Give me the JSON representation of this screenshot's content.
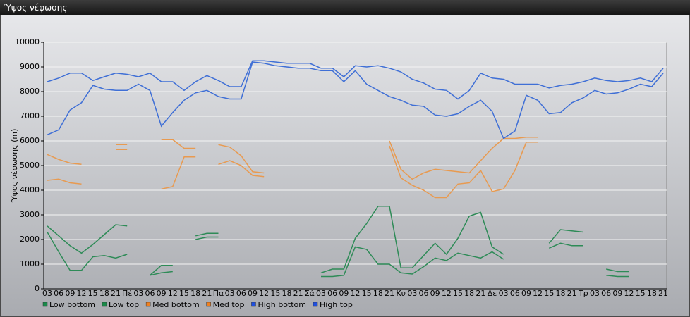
{
  "window_title": "Ύψος νέφωσης",
  "chart_data": {
    "type": "line",
    "ylabel": "Ύψος νέφωσης (m)",
    "categories": [
      "03",
      "06",
      "09",
      "12",
      "15",
      "18",
      "21",
      "Πέ",
      "03",
      "06",
      "09",
      "12",
      "15",
      "18",
      "21",
      "Πα",
      "03",
      "06",
      "09",
      "12",
      "15",
      "18",
      "21",
      "Σά",
      "03",
      "06",
      "09",
      "12",
      "15",
      "18",
      "21",
      "Κυ",
      "03",
      "06",
      "09",
      "12",
      "15",
      "18",
      "21",
      "Δε",
      "03",
      "06",
      "09",
      "12",
      "15",
      "18",
      "21",
      "Τρ",
      "03",
      "06",
      "09",
      "12",
      "15",
      "18",
      "21"
    ],
    "ylim": [
      0,
      10000
    ],
    "yticks": [
      0,
      1000,
      2000,
      3000,
      4000,
      5000,
      6000,
      7000,
      8000,
      9000,
      10000
    ],
    "grid": true,
    "legend": "bottom",
    "series": [
      {
        "name": "Low bottom",
        "color": "#2e8b57",
        "legend_color": "#1a8a4a",
        "values": [
          2300,
          1500,
          750,
          750,
          1300,
          1350,
          1250,
          1400,
          null,
          550,
          650,
          700,
          null,
          2000,
          2100,
          2100,
          null,
          null,
          null,
          null,
          null,
          null,
          null,
          null,
          500,
          500,
          550,
          1700,
          1600,
          1000,
          1000,
          650,
          600,
          900,
          1250,
          1150,
          1450,
          1350,
          1250,
          1500,
          1200,
          null,
          null,
          null,
          1650,
          1850,
          1750,
          1750,
          null,
          550,
          500,
          500,
          null,
          null,
          null
        ]
      },
      {
        "name": "Low top",
        "color": "#2e8b57",
        "legend_color": "#1a8a4a",
        "values": [
          2550,
          2150,
          1750,
          1450,
          1800,
          2200,
          2600,
          2550,
          null,
          550,
          950,
          950,
          null,
          2150,
          2250,
          2250,
          null,
          null,
          null,
          null,
          null,
          null,
          null,
          null,
          650,
          800,
          800,
          2050,
          2650,
          3350,
          3350,
          850,
          850,
          1350,
          1850,
          1400,
          2050,
          2950,
          3100,
          1700,
          1400,
          null,
          null,
          null,
          1850,
          2400,
          2350,
          2300,
          null,
          800,
          700,
          700,
          null,
          null,
          null
        ]
      },
      {
        "name": "Med bottom",
        "color": "#e89a50",
        "legend_color": "#f08020",
        "values": [
          4400,
          4450,
          4300,
          4250,
          null,
          null,
          5650,
          5650,
          null,
          null,
          4050,
          4150,
          5350,
          5350,
          null,
          5050,
          5200,
          5000,
          4600,
          4550,
          null,
          null,
          null,
          null,
          null,
          null,
          null,
          null,
          null,
          null,
          5800,
          4500,
          4200,
          4000,
          3700,
          3700,
          4250,
          4300,
          4800,
          3950,
          4050,
          4800,
          5950,
          5950,
          null,
          null,
          null,
          null,
          null,
          null,
          null,
          null,
          null,
          null,
          null
        ]
      },
      {
        "name": "Med top",
        "color": "#e89a50",
        "legend_color": "#f08020",
        "values": [
          5450,
          5250,
          5100,
          5050,
          null,
          null,
          5850,
          5850,
          null,
          null,
          6050,
          6050,
          5700,
          5700,
          null,
          5850,
          5750,
          5400,
          4750,
          4700,
          null,
          null,
          null,
          null,
          null,
          null,
          null,
          null,
          null,
          null,
          6000,
          4850,
          4450,
          4700,
          4850,
          4800,
          4750,
          4700,
          5200,
          5700,
          6100,
          6100,
          6150,
          6150,
          null,
          null,
          null,
          null,
          null,
          null,
          null,
          null,
          null,
          null,
          null
        ]
      },
      {
        "name": "High bottom",
        "color": "#3f6fd6",
        "legend_color": "#2050e0",
        "values": [
          6250,
          6450,
          7250,
          7550,
          8250,
          8100,
          8050,
          8050,
          8300,
          8050,
          6600,
          7150,
          7650,
          7950,
          8050,
          7800,
          7700,
          7700,
          9200,
          9150,
          9050,
          9000,
          8950,
          8950,
          8850,
          8850,
          8400,
          8850,
          8300,
          8050,
          7800,
          7650,
          7450,
          7400,
          7050,
          7000,
          7100,
          7400,
          7650,
          7200,
          6100,
          6400,
          7850,
          7650,
          7100,
          7150,
          7550,
          7750,
          8050,
          7900,
          7950,
          8100,
          8300,
          8200,
          8750
        ]
      },
      {
        "name": "High top",
        "color": "#3f6fd6",
        "legend_color": "#2050e0",
        "values": [
          8400,
          8550,
          8750,
          8750,
          8450,
          8600,
          8750,
          8700,
          8600,
          8750,
          8400,
          8400,
          8050,
          8400,
          8650,
          8450,
          8200,
          8200,
          9250,
          9250,
          9200,
          9150,
          9150,
          9150,
          8950,
          8950,
          8600,
          9050,
          9000,
          9050,
          8950,
          8800,
          8500,
          8350,
          8100,
          8050,
          7700,
          8050,
          8750,
          8550,
          8500,
          8300,
          8300,
          8300,
          8150,
          8250,
          8300,
          8400,
          8550,
          8450,
          8400,
          8450,
          8550,
          8400,
          8950
        ]
      }
    ]
  }
}
